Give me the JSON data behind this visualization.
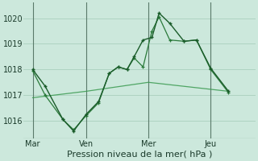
{
  "bg_color": "#cce8dc",
  "grid_color": "#aacfbe",
  "line_color_dark": "#1a5c2a",
  "line_color_med": "#2a7a3a",
  "line_color_light": "#3a9a50",
  "xlabel": "Pression niveau de la mer( hPa )",
  "ylim": [
    1015.3,
    1020.6
  ],
  "yticks": [
    1016,
    1017,
    1018,
    1019,
    1020
  ],
  "xtick_labels": [
    "Mar",
    "Ven",
    "Mer",
    "Jeu"
  ],
  "xtick_positions": [
    0.5,
    3.5,
    7.0,
    10.5
  ],
  "vline_positions": [
    0.5,
    3.5,
    7.0,
    10.5
  ],
  "xlim": [
    0.0,
    13.0
  ],
  "series1_x": [
    0.5,
    1.2,
    2.2,
    2.8,
    3.5,
    4.2,
    4.8,
    5.3,
    5.8,
    6.2,
    6.7,
    7.2,
    7.6,
    8.2,
    9.0,
    9.7,
    10.5,
    11.5
  ],
  "series1_y": [
    1018.0,
    1017.35,
    1016.05,
    1015.6,
    1016.25,
    1016.75,
    1017.85,
    1018.1,
    1018.0,
    1018.5,
    1019.15,
    1019.25,
    1020.2,
    1019.8,
    1019.1,
    1019.15,
    1018.05,
    1017.15
  ],
  "series2_x": [
    0.5,
    1.2,
    2.2,
    2.8,
    3.5,
    4.2,
    4.8,
    5.3,
    5.8,
    6.2,
    6.7,
    7.2,
    7.6,
    8.2,
    9.0,
    9.7,
    10.5,
    11.5
  ],
  "series2_y": [
    1017.95,
    1017.0,
    1016.05,
    1015.65,
    1016.2,
    1016.7,
    1017.85,
    1018.1,
    1018.0,
    1018.45,
    1018.1,
    1019.5,
    1020.05,
    1019.15,
    1019.1,
    1019.15,
    1018.0,
    1017.1
  ],
  "series3_x": [
    0.5,
    3.5,
    7.0,
    11.5
  ],
  "series3_y": [
    1016.9,
    1017.15,
    1017.5,
    1017.15
  ],
  "xlabel_fontsize": 8,
  "tick_fontsize": 7
}
